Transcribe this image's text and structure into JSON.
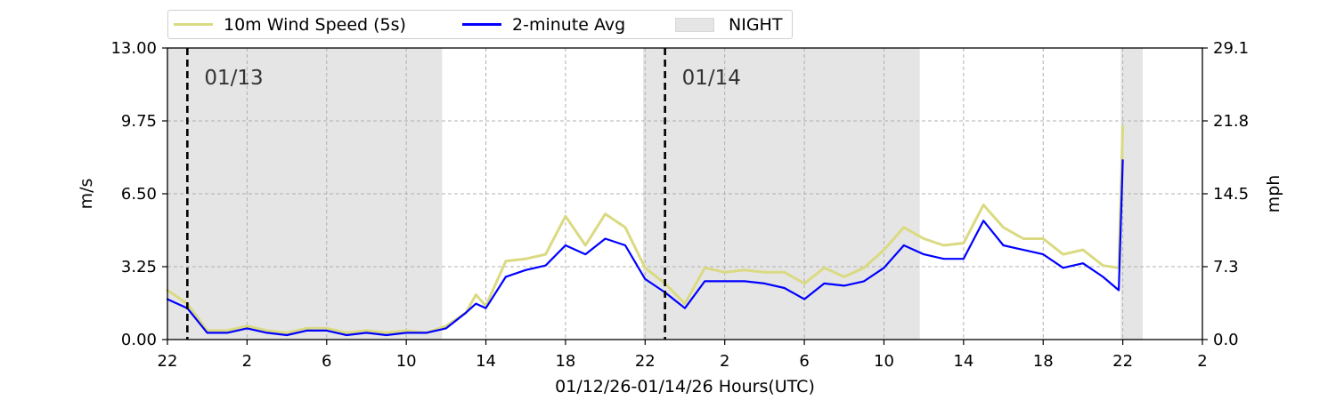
{
  "legend": [
    {
      "label": "10m Wind Speed (5s)",
      "color": "#dada82",
      "kind": "line"
    },
    {
      "label": "2-minute Avg",
      "color": "#0000ff",
      "kind": "line"
    },
    {
      "label": "NIGHT",
      "color": "#e5e5e5",
      "kind": "area"
    }
  ],
  "chart_data": {
    "type": "line",
    "title": "",
    "xlabel": "01/12/26-01/14/26  Hours(UTC)",
    "ylabel": "m/s",
    "ylabel_right": "mph",
    "x_units": "hours since 01/12/26 00:00 UTC",
    "xlim": [
      22,
      74
    ],
    "ylim": [
      0,
      13
    ],
    "x_tick_values": [
      22,
      26,
      30,
      34,
      38,
      42,
      46,
      50,
      54,
      58,
      62,
      66,
      70,
      74
    ],
    "x_tick_labels": [
      "22",
      "2",
      "6",
      "10",
      "14",
      "18",
      "22",
      "2",
      "6",
      "10",
      "14",
      "18",
      "22",
      "2"
    ],
    "y_ticks": [
      0,
      3.25,
      6.5,
      9.75,
      13
    ],
    "y_tick_labels": [
      "0.00",
      "3.25",
      "6.50",
      "9.75",
      "13.00"
    ],
    "y_right_tick_labels": [
      "0.0",
      "7.3",
      "14.5",
      "21.8",
      "29.1"
    ],
    "grid": true,
    "legend_position": "top-left above plot",
    "night_shading": [
      [
        22,
        35.8
      ],
      [
        45.9,
        59.8
      ],
      [
        69.9,
        71.0
      ]
    ],
    "day_markers": [
      {
        "x": 23.0,
        "label": "01/13"
      },
      {
        "x": 47.0,
        "label": "01/14"
      }
    ],
    "series": [
      {
        "name": "10m Wind Speed (5s)",
        "color": "#dada82",
        "x": [
          22,
          23,
          24,
          25,
          26,
          27,
          28,
          29,
          30,
          31,
          32,
          33,
          34,
          35,
          36,
          37,
          37.5,
          38,
          39,
          40,
          41,
          42,
          43,
          44,
          45,
          46,
          47,
          48,
          49,
          50,
          51,
          52,
          53,
          54,
          55,
          56,
          57,
          58,
          59,
          60,
          61,
          62,
          63,
          64,
          65,
          66,
          67,
          68,
          69,
          69.8,
          70.0
        ],
        "values": [
          2.2,
          1.6,
          0.4,
          0.4,
          0.6,
          0.4,
          0.3,
          0.5,
          0.5,
          0.3,
          0.4,
          0.3,
          0.4,
          0.3,
          0.6,
          1.2,
          2.0,
          1.5,
          3.5,
          3.6,
          3.8,
          5.5,
          4.2,
          5.6,
          5.0,
          3.2,
          2.5,
          1.6,
          3.2,
          3.0,
          3.1,
          3.0,
          3.0,
          2.5,
          3.2,
          2.8,
          3.2,
          4.0,
          5.0,
          4.5,
          4.2,
          4.3,
          6.0,
          5.0,
          4.5,
          4.5,
          3.8,
          4.0,
          3.3,
          3.2,
          9.5
        ]
      },
      {
        "name": "2-minute Avg",
        "color": "#0000ff",
        "x": [
          22,
          23,
          24,
          25,
          26,
          27,
          28,
          29,
          30,
          31,
          32,
          33,
          34,
          35,
          36,
          37,
          37.5,
          38,
          39,
          40,
          41,
          42,
          43,
          44,
          45,
          46,
          47,
          48,
          49,
          50,
          51,
          52,
          53,
          54,
          55,
          56,
          57,
          58,
          59,
          60,
          61,
          62,
          63,
          64,
          65,
          66,
          67,
          68,
          69,
          69.8,
          70.0
        ],
        "values": [
          1.8,
          1.4,
          0.3,
          0.3,
          0.5,
          0.3,
          0.2,
          0.4,
          0.4,
          0.2,
          0.3,
          0.2,
          0.3,
          0.3,
          0.5,
          1.2,
          1.6,
          1.4,
          2.8,
          3.1,
          3.3,
          4.2,
          3.8,
          4.5,
          4.2,
          2.7,
          2.1,
          1.4,
          2.6,
          2.6,
          2.6,
          2.5,
          2.3,
          1.8,
          2.5,
          2.4,
          2.6,
          3.2,
          4.2,
          3.8,
          3.6,
          3.6,
          5.3,
          4.2,
          4.0,
          3.8,
          3.2,
          3.4,
          2.8,
          2.2,
          8.0
        ]
      }
    ]
  }
}
